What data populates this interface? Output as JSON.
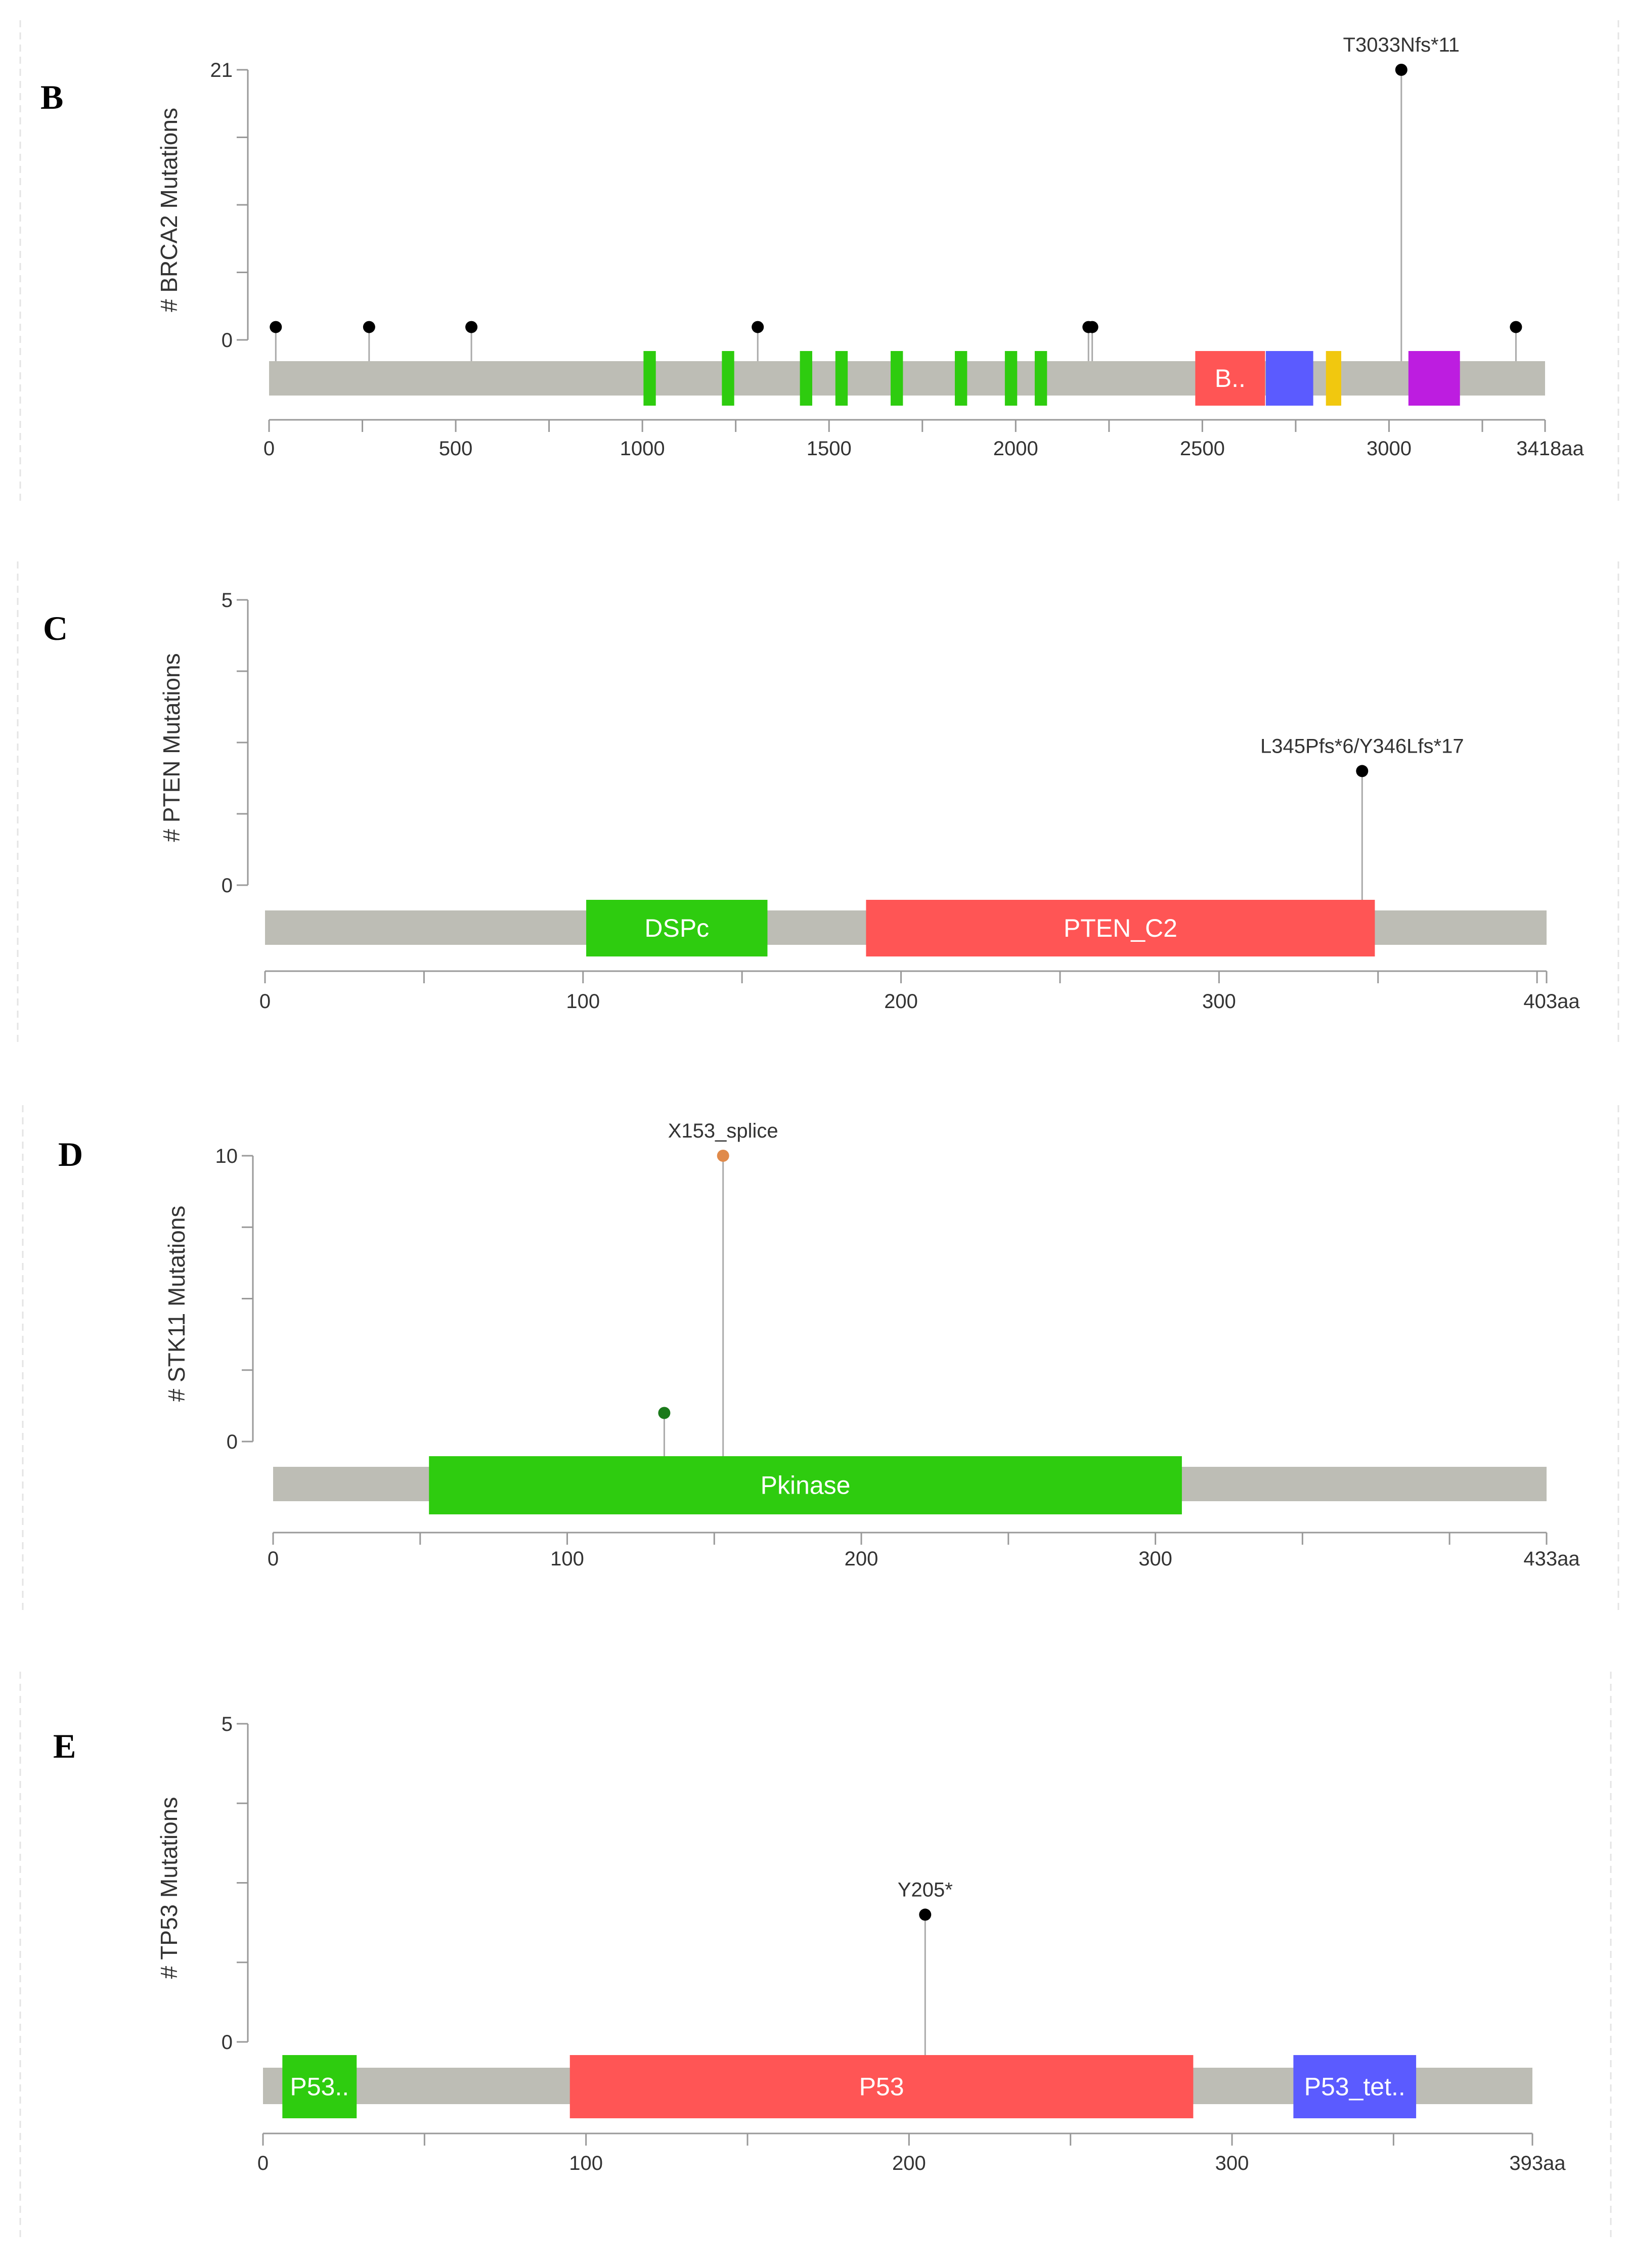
{
  "chart_data": [
    {
      "type": "lollipop",
      "panel_label": "B",
      "ylabel": "# BRCA2 Mutations",
      "y_ticks": [
        "21",
        "0"
      ],
      "ylim": [
        0,
        21
      ],
      "protein_length": 3418,
      "length_label": "3418aa",
      "x_ticks": [
        "0",
        "500",
        "1000",
        "1500",
        "2000",
        "2500",
        "3000"
      ],
      "x_tick_values": [
        0,
        500,
        1000,
        1500,
        2000,
        2500,
        3000
      ],
      "x_minor_step": 250,
      "domains": [
        {
          "start": 1003,
          "end": 1036,
          "label": "",
          "color": "#2ecc0f"
        },
        {
          "start": 1213,
          "end": 1246,
          "label": "",
          "color": "#2ecc0f"
        },
        {
          "start": 1422,
          "end": 1455,
          "label": "",
          "color": "#2ecc0f"
        },
        {
          "start": 1517,
          "end": 1550,
          "label": "",
          "color": "#2ecc0f"
        },
        {
          "start": 1665,
          "end": 1698,
          "label": "",
          "color": "#2ecc0f"
        },
        {
          "start": 1837,
          "end": 1870,
          "label": "",
          "color": "#2ecc0f"
        },
        {
          "start": 1971,
          "end": 2004,
          "label": "",
          "color": "#2ecc0f"
        },
        {
          "start": 2051,
          "end": 2084,
          "label": "",
          "color": "#2ecc0f"
        },
        {
          "start": 2481,
          "end": 2668,
          "label": "B..",
          "color": "#ff5555"
        },
        {
          "start": 2670,
          "end": 2797,
          "label": "",
          "color": "#5b5bff"
        },
        {
          "start": 2831,
          "end": 2872,
          "label": "",
          "color": "#f1c80f"
        },
        {
          "start": 3052,
          "end": 3190,
          "label": "",
          "color": "#bd1de0"
        }
      ],
      "mutations": [
        {
          "position": 18,
          "count": 1,
          "label": "",
          "color": "#000000"
        },
        {
          "position": 268,
          "count": 1,
          "label": "",
          "color": "#000000"
        },
        {
          "position": 542,
          "count": 1,
          "label": "",
          "color": "#000000"
        },
        {
          "position": 1309,
          "count": 1,
          "label": "",
          "color": "#000000"
        },
        {
          "position": 2195,
          "count": 1,
          "label": "",
          "color": "#000000"
        },
        {
          "position": 2205,
          "count": 1,
          "label": "",
          "color": "#000000"
        },
        {
          "position": 3033,
          "count": 21,
          "label": "T3033Nfs*11",
          "color": "#000000"
        },
        {
          "position": 3340,
          "count": 1,
          "label": "",
          "color": "#000000"
        }
      ]
    },
    {
      "type": "lollipop",
      "panel_label": "C",
      "ylabel": "# PTEN Mutations",
      "y_ticks": [
        "5",
        "0"
      ],
      "ylim": [
        0,
        5
      ],
      "protein_length": 403,
      "length_label": "403aa",
      "x_ticks": [
        "0",
        "100",
        "200",
        "300"
      ],
      "x_tick_values": [
        0,
        100,
        200,
        300
      ],
      "x_minor_step": 50,
      "domains": [
        {
          "start": 101,
          "end": 158,
          "label": "DSPc",
          "color": "#2ecc0f"
        },
        {
          "start": 189,
          "end": 349,
          "label": "PTEN_C2",
          "color": "#ff5555"
        }
      ],
      "mutations": [
        {
          "position": 345,
          "count": 2,
          "label": "L345Pfs*6/Y346Lfs*17",
          "color": "#000000"
        }
      ]
    },
    {
      "type": "lollipop",
      "panel_label": "D",
      "ylabel": "# STK11 Mutations",
      "y_ticks": [
        "10",
        "0"
      ],
      "ylim": [
        0,
        10
      ],
      "protein_length": 433,
      "length_label": "433aa",
      "x_ticks": [
        "0",
        "100",
        "200",
        "300"
      ],
      "x_tick_values": [
        0,
        100,
        200,
        300
      ],
      "x_minor_step": 50,
      "domains": [
        {
          "start": 53,
          "end": 309,
          "label": "Pkinase",
          "color": "#2ecc0f"
        }
      ],
      "mutations": [
        {
          "position": 133,
          "count": 1,
          "label": "",
          "color": "#1b7a1b"
        },
        {
          "position": 153,
          "count": 10,
          "label": "X153_splice",
          "color": "#e08a4a"
        }
      ]
    },
    {
      "type": "lollipop",
      "panel_label": "E",
      "ylabel": "# TP53 Mutations",
      "y_ticks": [
        "5",
        "0"
      ],
      "ylim": [
        0,
        5
      ],
      "protein_length": 393,
      "length_label": "393aa",
      "x_ticks": [
        "0",
        "100",
        "200",
        "300"
      ],
      "x_tick_values": [
        0,
        100,
        200,
        300
      ],
      "x_minor_step": 50,
      "domains": [
        {
          "start": 6,
          "end": 29,
          "label": "P53..",
          "color": "#2ecc0f"
        },
        {
          "start": 95,
          "end": 288,
          "label": "P53",
          "color": "#ff5555"
        },
        {
          "start": 319,
          "end": 357,
          "label": "P53_tet..",
          "color": "#5b5bff"
        }
      ],
      "mutations": [
        {
          "position": 205,
          "count": 2,
          "label": "Y205*",
          "color": "#000000"
        }
      ]
    }
  ]
}
